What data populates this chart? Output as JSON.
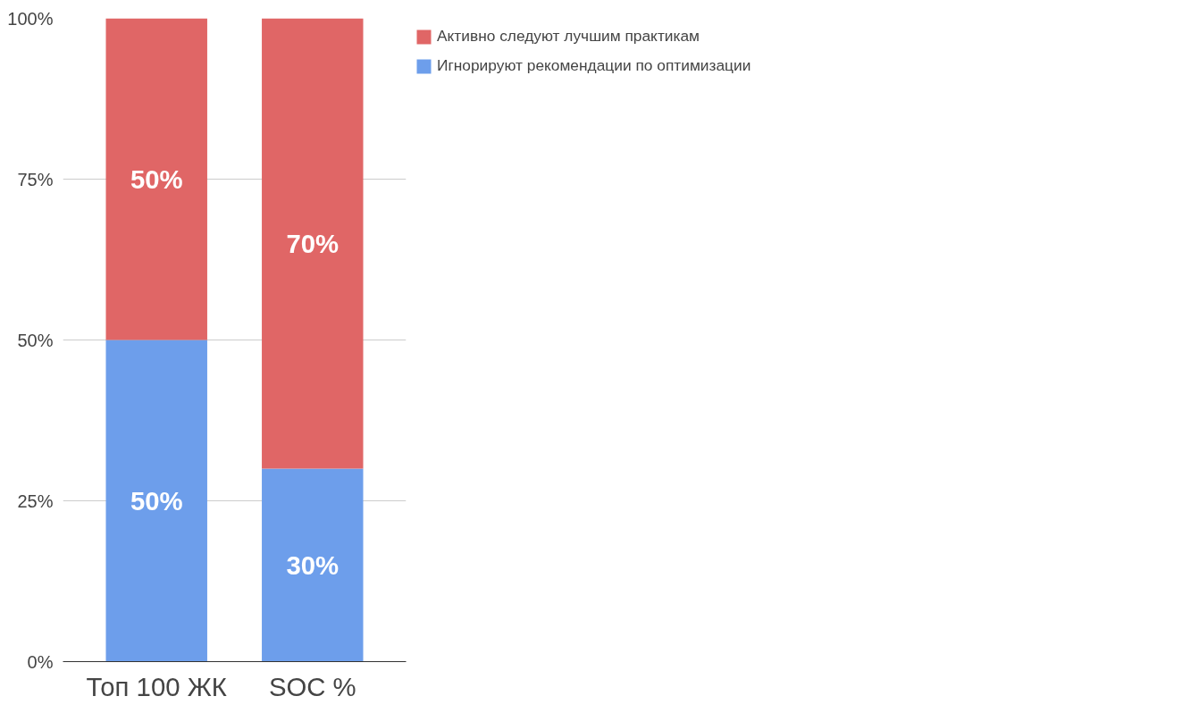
{
  "chart_data": {
    "type": "bar",
    "stacked": true,
    "categories": [
      "Топ 100 ЖК",
      "SOC %"
    ],
    "series": [
      {
        "name": "Игнорируют рекомендации по оптимизации",
        "color": "#6d9eeb",
        "values": [
          50,
          30
        ],
        "value_labels": [
          "50%",
          "30%"
        ]
      },
      {
        "name": "Активно следуют лучшим практикам",
        "color": "#e06666",
        "values": [
          50,
          70
        ],
        "value_labels": [
          "50%",
          "70%"
        ]
      }
    ],
    "ylim": [
      0,
      100
    ],
    "yticks": [
      {
        "value": 0,
        "label": "0%"
      },
      {
        "value": 25,
        "label": "25%"
      },
      {
        "value": 50,
        "label": "50%"
      },
      {
        "value": 75,
        "label": "75%"
      },
      {
        "value": 100,
        "label": "100%"
      }
    ],
    "grid": "y",
    "legend": "top right"
  }
}
